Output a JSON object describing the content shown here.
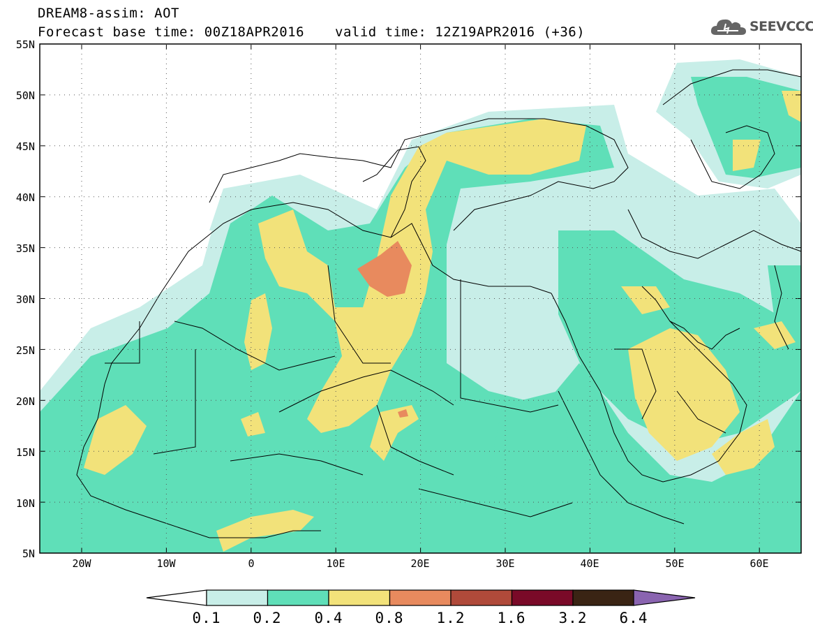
{
  "title_line1": "DREAM8-assim: AOT",
  "base_time": "Forecast base time: 00Z18APR2016",
  "valid_time": "valid time: 12Z19APR2016 (+36)",
  "logo_text": "SEEVCCC",
  "lat_labels": [
    "55N",
    "50N",
    "45N",
    "40N",
    "35N",
    "30N",
    "25N",
    "20N",
    "15N",
    "10N",
    "5N"
  ],
  "lon_labels": [
    "20W",
    "10W",
    "0",
    "10E",
    "20E",
    "30E",
    "40E",
    "50E",
    "60E"
  ],
  "colorbar": {
    "ticks": [
      "0.1",
      "0.2",
      "0.4",
      "0.8",
      "1.2",
      "1.6",
      "3.2",
      "6.4"
    ],
    "colors": [
      "#c8eee8",
      "#5fdfb8",
      "#f2e27a",
      "#e88a5e",
      "#b04a3a",
      "#7a0a28",
      "#3a2414",
      "#8a64b0"
    ]
  },
  "map_colors": {
    "land": "#ffffff",
    "c1": "#c8eee8",
    "c2": "#5fdfb8",
    "c3": "#f2e27a",
    "c4": "#e88a5e"
  }
}
